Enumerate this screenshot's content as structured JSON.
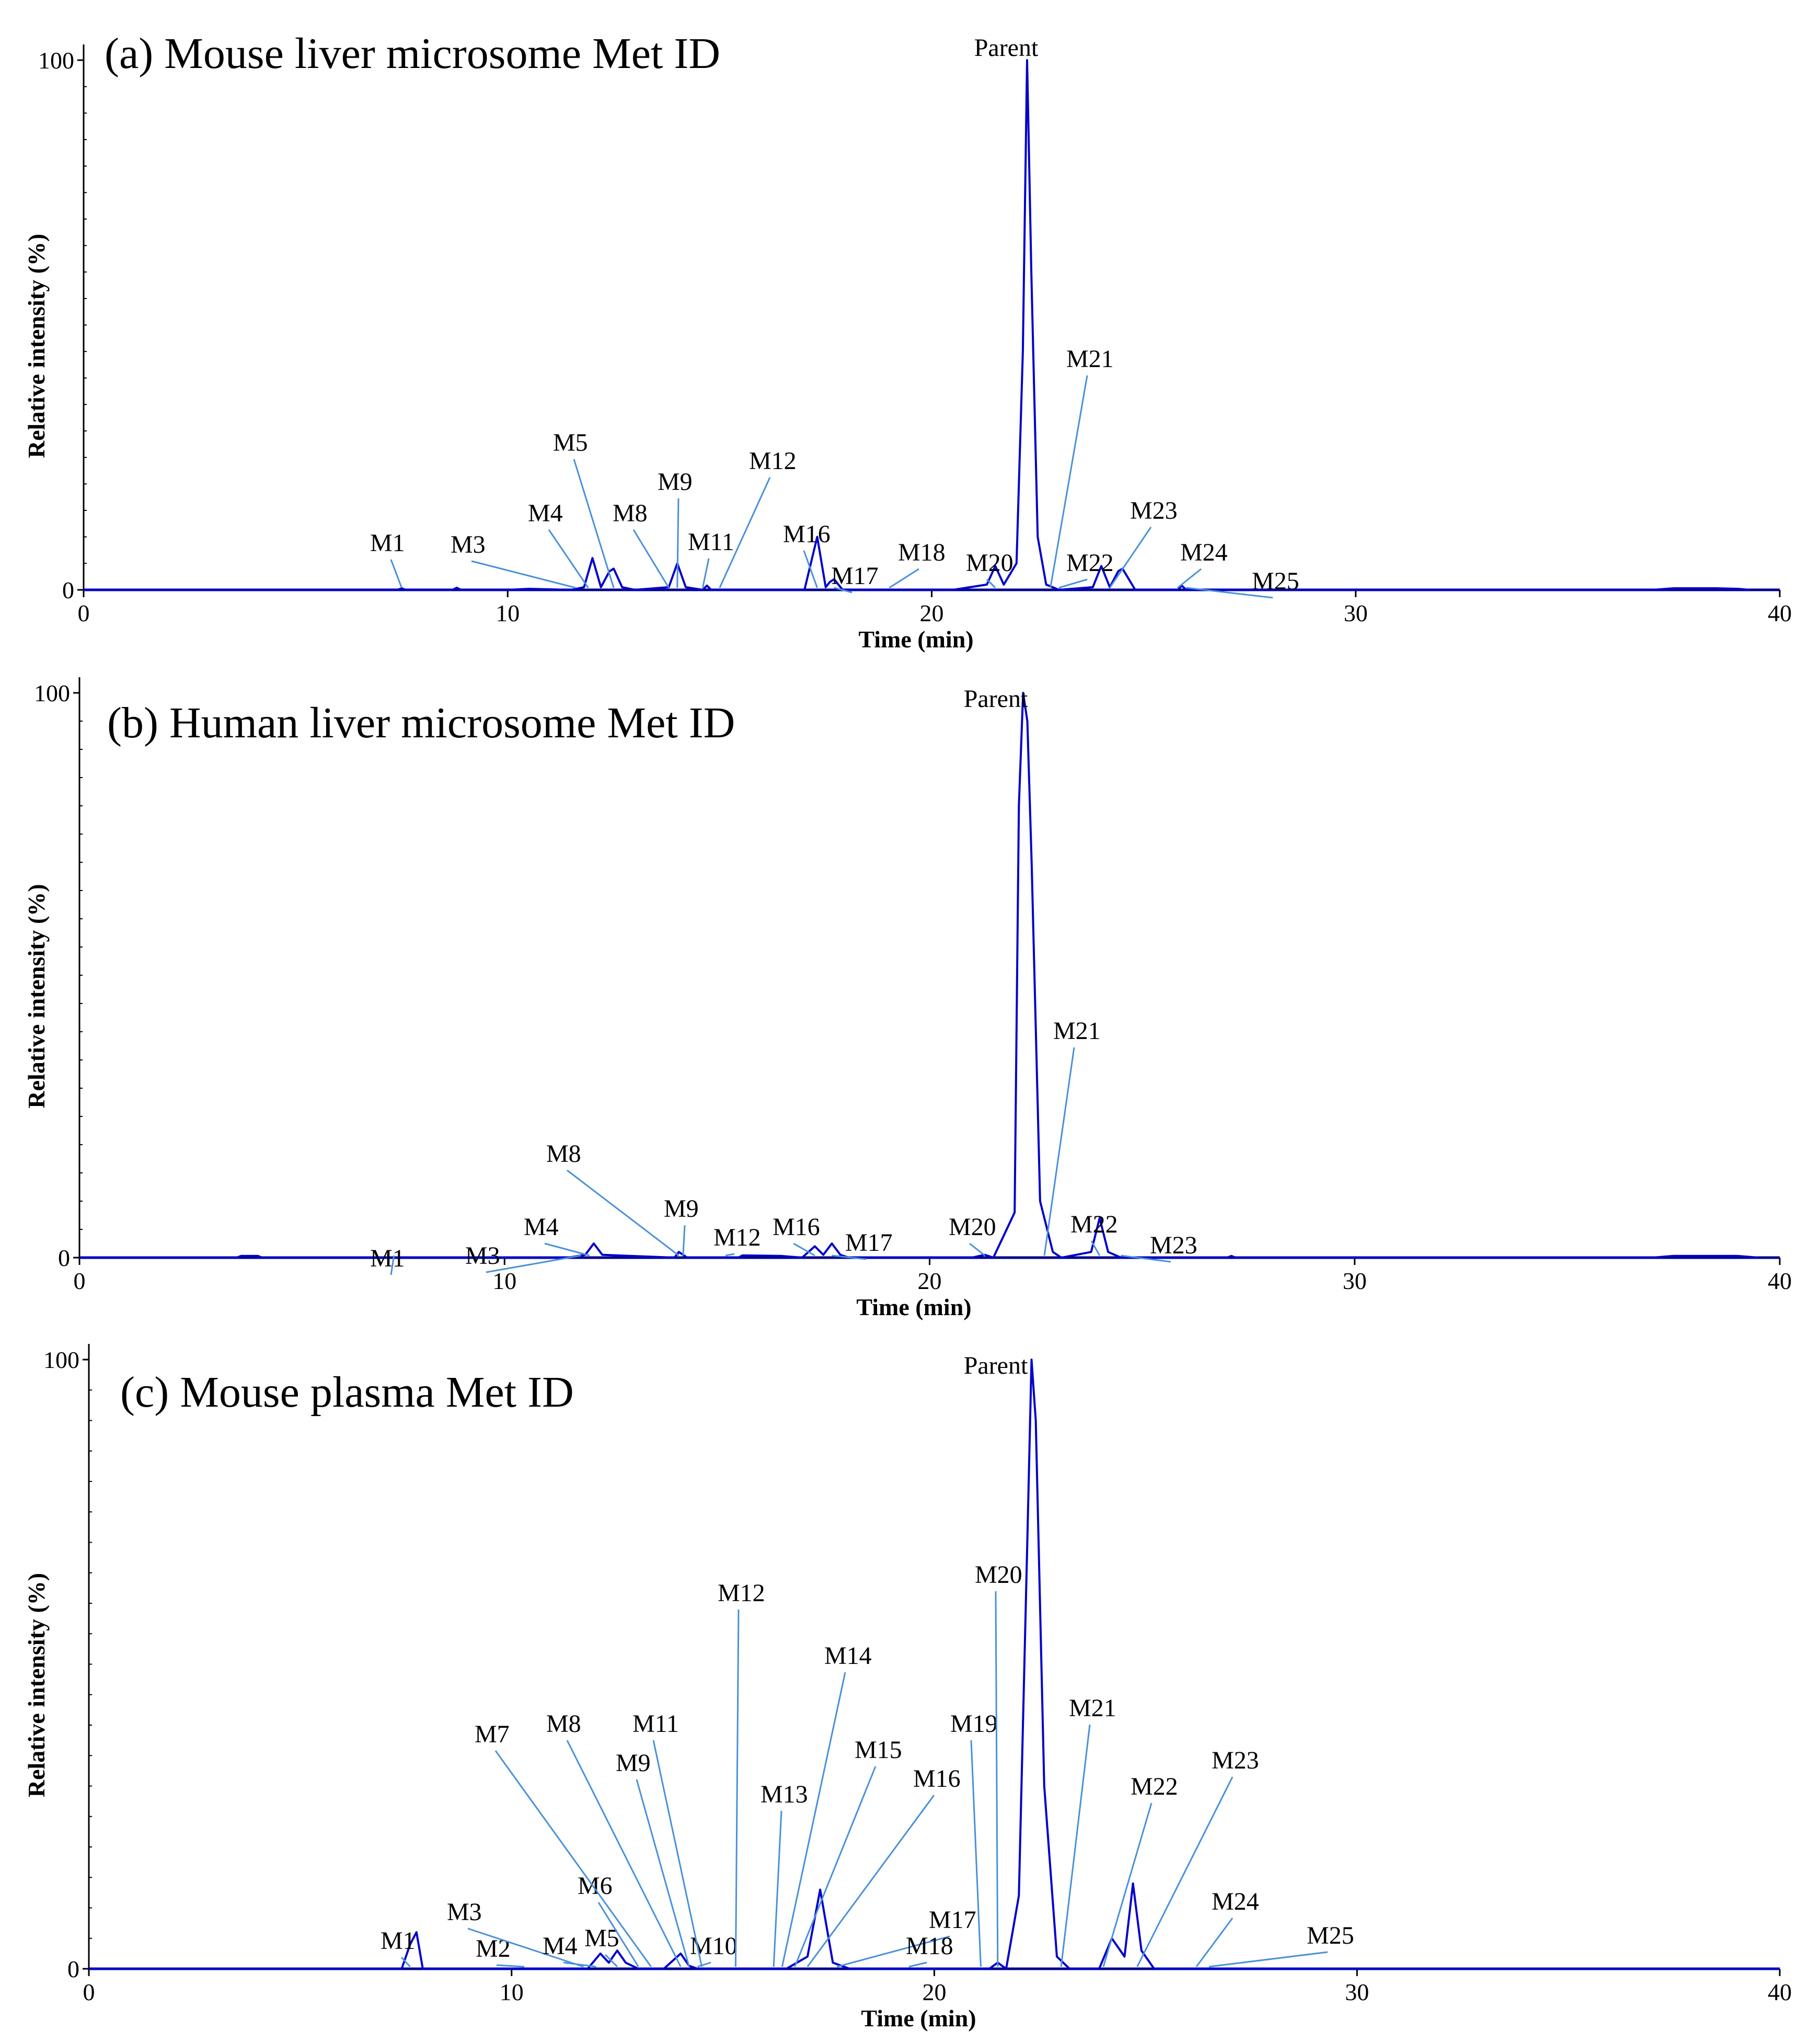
{
  "colors": {
    "trace": "#0000CC",
    "baseline": "#00008B",
    "leader": "#4A90D9",
    "axis": "#000000"
  },
  "chart_data": [
    {
      "type": "line",
      "title": "(a) Mouse liver microsome Met ID",
      "xlabel": "Time (min)",
      "ylabel": "Relative intensity (%)",
      "xlim": [
        0,
        40
      ],
      "ylim": [
        0,
        100
      ],
      "x_ticks": [
        "0",
        "10",
        "20",
        "30",
        "40"
      ],
      "y_ticks": [
        "0",
        "100"
      ],
      "x": [
        0.0,
        7.4,
        7.5,
        7.6,
        8.7,
        8.8,
        8.9,
        10.0,
        10.5,
        11.5,
        11.8,
        12.0,
        12.2,
        12.4,
        12.5,
        12.7,
        13.0,
        13.8,
        14.0,
        14.2,
        14.6,
        14.7,
        14.8,
        17.0,
        17.3,
        17.5,
        17.6,
        17.7,
        17.9,
        18.3,
        20.5,
        21.3,
        21.5,
        21.7,
        22.0,
        22.15,
        22.25,
        22.3,
        22.35,
        22.5,
        22.7,
        23.0,
        23.8,
        24.0,
        24.2,
        24.4,
        24.5,
        24.8,
        25.8,
        25.9,
        26.0,
        27.0,
        37.0,
        37.5,
        38.5,
        39.0,
        39.3
      ],
      "y": [
        0,
        0,
        0.3,
        0,
        0,
        0.4,
        0,
        0,
        0.2,
        0,
        0.5,
        6,
        0.5,
        3.5,
        4,
        0.5,
        0,
        0.5,
        5,
        0.5,
        0,
        0.8,
        0,
        0,
        10,
        0.5,
        1.5,
        2,
        0,
        0,
        0,
        1,
        4.5,
        1,
        5,
        45,
        100,
        80,
        60,
        10,
        1,
        0,
        0.5,
        4.5,
        0.5,
        3.5,
        4,
        0,
        0,
        0.8,
        0,
        0,
        0,
        0.3,
        0.3,
        0.2,
        0
      ],
      "peak_labels": [
        {
          "label": "Parent",
          "rt": 22.25
        },
        {
          "label": "M1",
          "rt": 7.5
        },
        {
          "label": "M3",
          "rt": 11.6
        },
        {
          "label": "M4",
          "rt": 11.9
        },
        {
          "label": "M5",
          "rt": 12.5
        },
        {
          "label": "M8",
          "rt": 13.8
        },
        {
          "label": "M9",
          "rt": 14.0
        },
        {
          "label": "M11",
          "rt": 14.6
        },
        {
          "label": "M12",
          "rt": 15.0
        },
        {
          "label": "M16",
          "rt": 17.3
        },
        {
          "label": "M17",
          "rt": 17.7
        },
        {
          "label": "M18",
          "rt": 19.0
        },
        {
          "label": "M20",
          "rt": 21.5
        },
        {
          "label": "M21",
          "rt": 22.8
        },
        {
          "label": "M22",
          "rt": 23.0
        },
        {
          "label": "M23",
          "rt": 24.2
        },
        {
          "label": "M24",
          "rt": 25.8
        },
        {
          "label": "M25",
          "rt": 26.0
        }
      ]
    },
    {
      "type": "line",
      "title": "(b) Human liver microsome Met ID",
      "xlabel": "Time (min)",
      "ylabel": "Relative intensity (%)",
      "xlim": [
        0,
        40
      ],
      "ylim": [
        0,
        100
      ],
      "x_ticks": [
        "0",
        "10",
        "20",
        "30",
        "40"
      ],
      "y_ticks": [
        "0",
        "100"
      ],
      "x": [
        0.0,
        3.7,
        3.8,
        4.2,
        4.3,
        11.5,
        11.9,
        12.1,
        12.3,
        14.0,
        14.1,
        14.3,
        15.5,
        15.6,
        16.5,
        17.0,
        17.3,
        17.5,
        17.7,
        17.9,
        18.1,
        21.0,
        21.3,
        21.5,
        22.0,
        22.1,
        22.2,
        22.3,
        22.4,
        22.6,
        22.9,
        23.1,
        23.8,
        24.0,
        24.2,
        24.5,
        27.0,
        27.1,
        27.2,
        37.0,
        37.5,
        39.0,
        39.5
      ],
      "y": [
        0,
        0,
        0.3,
        0.3,
        0,
        0,
        0.5,
        2.5,
        0.5,
        0,
        1,
        0,
        0,
        0.4,
        0.3,
        0,
        2,
        0.5,
        2.5,
        0.5,
        0,
        0,
        0.5,
        0,
        8,
        80,
        100,
        95,
        70,
        10,
        1,
        0,
        1,
        7,
        1,
        0,
        0,
        0.3,
        0,
        0,
        0.3,
        0.3,
        0
      ],
      "peak_labels": [
        {
          "label": "Parent",
          "rt": 22.2
        },
        {
          "label": "M1",
          "rt": 7.4
        },
        {
          "label": "M3",
          "rt": 11.8
        },
        {
          "label": "M4",
          "rt": 12.0
        },
        {
          "label": "M8",
          "rt": 14.1
        },
        {
          "label": "M9",
          "rt": 14.2
        },
        {
          "label": "M12",
          "rt": 15.2
        },
        {
          "label": "M16",
          "rt": 17.3
        },
        {
          "label": "M17",
          "rt": 17.7
        },
        {
          "label": "M20",
          "rt": 21.3
        },
        {
          "label": "M21",
          "rt": 22.7
        },
        {
          "label": "M22",
          "rt": 24.0
        },
        {
          "label": "M23",
          "rt": 24.5
        }
      ]
    },
    {
      "type": "line",
      "title": "(c) Mouse plasma Met ID",
      "xlabel": "Time (min)",
      "ylabel": "Relative intensity (%)",
      "xlim": [
        0,
        40
      ],
      "ylim": [
        0,
        100
      ],
      "x_ticks": [
        "0",
        "10",
        "20",
        "30",
        "40"
      ],
      "y_ticks": [
        "0",
        "100"
      ],
      "x": [
        0.0,
        7.4,
        7.6,
        7.75,
        7.9,
        11.8,
        12.1,
        12.3,
        12.5,
        12.7,
        13.0,
        13.6,
        14.0,
        14.2,
        14.4,
        16.5,
        17.0,
        17.3,
        17.6,
        18.0,
        21.3,
        21.5,
        21.7,
        22.0,
        22.2,
        22.3,
        22.4,
        22.6,
        22.9,
        23.2,
        23.9,
        24.2,
        24.5,
        24.7,
        24.9,
        25.2,
        40.0
      ],
      "y": [
        0,
        0,
        4,
        6,
        0,
        0,
        2.5,
        1,
        3,
        1,
        0,
        0,
        2.5,
        0.5,
        0,
        0,
        2,
        13,
        1,
        0,
        0,
        1,
        0,
        12,
        70,
        100,
        90,
        30,
        2,
        0,
        0,
        5,
        2,
        14,
        3,
        0,
        0
      ],
      "peak_labels": [
        {
          "label": "Parent",
          "rt": 22.3
        },
        {
          "label": "M1",
          "rt": 7.6
        },
        {
          "label": "M2",
          "rt": 10.3
        },
        {
          "label": "M3",
          "rt": 11.7
        },
        {
          "label": "M4",
          "rt": 12.0
        },
        {
          "label": "M5",
          "rt": 12.5
        },
        {
          "label": "M6",
          "rt": 13.0
        },
        {
          "label": "M7",
          "rt": 13.3
        },
        {
          "label": "M8",
          "rt": 14.0
        },
        {
          "label": "M9",
          "rt": 14.2
        },
        {
          "label": "M10",
          "rt": 14.4
        },
        {
          "label": "M11",
          "rt": 14.5
        },
        {
          "label": "M12",
          "rt": 15.3
        },
        {
          "label": "M13",
          "rt": 16.2
        },
        {
          "label": "M14",
          "rt": 16.4
        },
        {
          "label": "M15",
          "rt": 16.7
        },
        {
          "label": "M16",
          "rt": 17.0
        },
        {
          "label": "M17",
          "rt": 17.7
        },
        {
          "label": "M18",
          "rt": 19.4
        },
        {
          "label": "M19",
          "rt": 21.1
        },
        {
          "label": "M20",
          "rt": 21.5
        },
        {
          "label": "M21",
          "rt": 23.0
        },
        {
          "label": "M22",
          "rt": 24.0
        },
        {
          "label": "M23",
          "rt": 24.8
        },
        {
          "label": "M24",
          "rt": 26.2
        },
        {
          "label": "M25",
          "rt": 26.5
        }
      ]
    }
  ]
}
